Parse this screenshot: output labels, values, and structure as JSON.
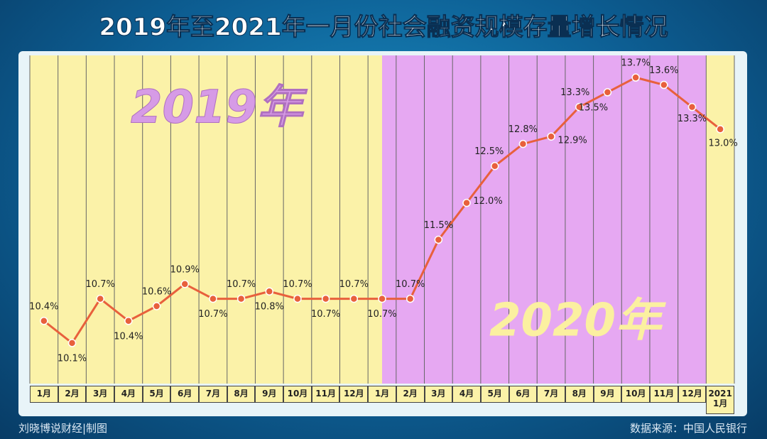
{
  "chart_data": {
    "type": "line",
    "title": "2019年至2021年一月份社会融资规模存量增长情况",
    "categories": [
      "1月",
      "2月",
      "3月",
      "4月",
      "5月",
      "6月",
      "7月",
      "8月",
      "9月",
      "10月",
      "11月",
      "12月",
      "1月",
      "2月",
      "3月",
      "4月",
      "5月",
      "6月",
      "7月",
      "8月",
      "9月",
      "10月",
      "11月",
      "12月",
      "2021\n1月"
    ],
    "series": [
      {
        "name": null,
        "color": "#e8603c",
        "values": [
          10.4,
          10.1,
          10.7,
          10.4,
          10.6,
          10.9,
          10.7,
          10.7,
          10.8,
          10.7,
          10.7,
          10.7,
          10.7,
          10.7,
          11.5,
          12.0,
          12.5,
          12.8,
          12.9,
          13.3,
          13.5,
          13.7,
          13.6,
          13.3,
          13.0
        ],
        "value_labels": [
          "10.4%",
          "10.1%",
          "10.7%",
          "10.4%",
          "10.6%",
          "10.9%",
          "10.7%",
          "10.7%",
          "10.8%",
          "10.7%",
          "10.7%",
          "10.7%",
          "10.7%",
          "10.7%",
          "11.5%",
          "12.0%",
          "12.5%",
          "12.8%",
          "12.9%",
          "13.3%",
          "13.5%",
          "13.7%",
          "13.6%",
          "13.3%",
          "13.0%"
        ]
      }
    ],
    "ylim": [
      9.55,
      14.0
    ],
    "annotations": [
      "2019年",
      "2020年"
    ],
    "credit": "刘晓博说财经|制图",
    "source": "数据来源：中国人民银行"
  }
}
